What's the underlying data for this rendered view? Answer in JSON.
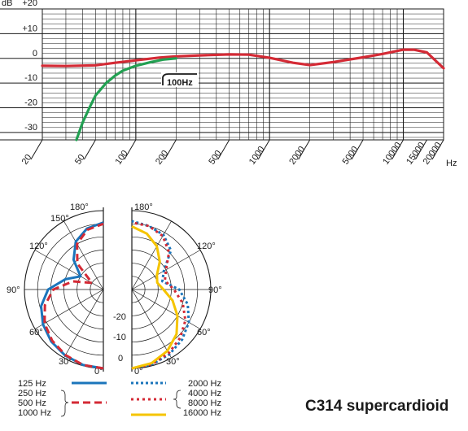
{
  "title": "C314 supercardioid",
  "chart_data": [
    {
      "type": "line",
      "x_scale": "log",
      "xlim": [
        20,
        20000
      ],
      "ylim": [
        -33,
        20
      ],
      "x_unit": "Hz",
      "y_unit": "dB",
      "y_ticks": [
        {
          "v": 20,
          "label": "+20"
        },
        {
          "v": 10,
          "label": "+10"
        },
        {
          "v": 0,
          "label": "0"
        },
        {
          "v": -10,
          "label": "-10"
        },
        {
          "v": -20,
          "label": "-20"
        },
        {
          "v": -30,
          "label": "-30"
        }
      ],
      "x_tick_values": [
        20,
        50,
        100,
        200,
        500,
        1000,
        2000,
        5000,
        10000,
        15000,
        20000
      ],
      "x_tick_labels": [
        "20",
        "50",
        "100",
        "200",
        "500",
        "1000",
        "2000",
        "5000",
        "10000",
        "15000",
        "20000"
      ],
      "annotation": "100Hz",
      "series": [
        {
          "color": "#d42a35",
          "x": [
            20,
            30,
            50,
            70,
            100,
            150,
            200,
            300,
            500,
            700,
            1000,
            1500,
            2000,
            3000,
            5000,
            7000,
            10000,
            12000,
            15000,
            20000
          ],
          "y": [
            -3,
            -3.1,
            -2.8,
            -1.8,
            -0.8,
            0.3,
            0.8,
            1.2,
            1.6,
            1.5,
            0.2,
            -1.8,
            -2.7,
            -1.5,
            0.4,
            1.8,
            3.5,
            3.5,
            2.4,
            -4
          ]
        },
        {
          "color": "#22a052",
          "x": [
            36,
            40,
            45,
            50,
            60,
            70,
            80,
            100,
            130,
            160,
            200
          ],
          "y": [
            -33,
            -26,
            -20,
            -15,
            -10,
            -7,
            -5,
            -3,
            -1.5,
            -0.5,
            0
          ]
        }
      ]
    },
    {
      "type": "polar",
      "rlim": [
        -30,
        0
      ],
      "r_tick_labels": [
        "-20",
        "-10",
        "0"
      ],
      "angle_labels": {
        "left": [
          "180°",
          "150°",
          "120°",
          "90°",
          "60°",
          "30°",
          "0°"
        ],
        "right": [
          "180°",
          "120°",
          "90°",
          "60°",
          "30°",
          "0°"
        ]
      },
      "legend": {
        "left": [
          "125 Hz",
          "250 Hz",
          "500 Hz",
          "1000 Hz"
        ],
        "right": [
          "2000 Hz",
          "4000 Hz",
          "8000 Hz",
          "16000 Hz"
        ]
      },
      "left_series": [
        {
          "style": "solid",
          "color": "#1b75bb",
          "angles": [
            0,
            15,
            30,
            45,
            60,
            75,
            90,
            105,
            120,
            135,
            150,
            165,
            180
          ],
          "db": [
            0,
            -0.3,
            -1,
            -2,
            -3.5,
            -5.5,
            -9,
            -15,
            -20,
            -14,
            -9,
            -6,
            -4.5
          ]
        },
        {
          "style": "dashed",
          "color": "#d42a35",
          "angles": [
            0,
            15,
            30,
            45,
            60,
            75,
            90,
            105,
            120,
            135,
            150,
            165,
            180
          ],
          "db": [
            0,
            -0.3,
            -1.2,
            -2.5,
            -4.2,
            -7,
            -11,
            -18,
            -25,
            -16,
            -10,
            -6.5,
            -5
          ]
        }
      ],
      "right_series": [
        {
          "style": "dotted-blue",
          "color": "#1b75bb",
          "angles": [
            0,
            15,
            30,
            45,
            60,
            75,
            90,
            105,
            120,
            135,
            150,
            165,
            180
          ],
          "db": [
            0,
            -0.5,
            -1.5,
            -3,
            -5,
            -8,
            -12,
            -18,
            -16,
            -9,
            -6,
            -5,
            -4
          ]
        },
        {
          "style": "dotted-red",
          "color": "#d42a35",
          "angles": [
            0,
            15,
            30,
            45,
            60,
            75,
            90,
            105,
            120,
            135,
            150,
            165,
            180
          ],
          "db": [
            0,
            -0.6,
            -2,
            -4,
            -6.5,
            -10,
            -14,
            -17,
            -15,
            -10,
            -6.5,
            -5,
            -4.5
          ]
        },
        {
          "style": "solid",
          "color": "#f5c400",
          "angles": [
            0,
            15,
            30,
            45,
            60,
            75,
            90,
            105,
            120,
            135,
            150,
            165,
            180
          ],
          "db": [
            0,
            -1,
            -3,
            -6,
            -10,
            -14,
            -18,
            -20,
            -19,
            -15,
            -11,
            -8,
            -6
          ]
        }
      ]
    }
  ]
}
